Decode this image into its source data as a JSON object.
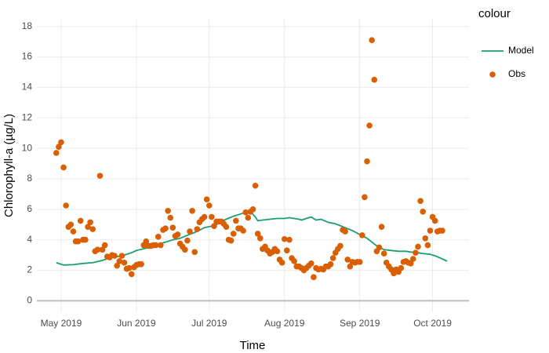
{
  "chart_data": {
    "type": "line",
    "xlabel": "Time",
    "ylabel": "Chlorophyll-a (µg/L)",
    "legend_title": "colour",
    "legend": "right",
    "grid": true,
    "reference_line": 0,
    "xlim": [
      111,
      289
    ],
    "ylim": [
      -0.75,
      18.5
    ],
    "xticks": [
      {
        "value": 121,
        "label": "May 2019"
      },
      {
        "value": 152,
        "label": "Jun 2019"
      },
      {
        "value": 182,
        "label": "Jul 2019"
      },
      {
        "value": 213,
        "label": "Aug 2019"
      },
      {
        "value": 244,
        "label": "Sep 2019"
      },
      {
        "value": 274,
        "label": "Oct 2019"
      }
    ],
    "yticks": [
      0,
      2,
      4,
      6,
      8,
      10,
      12,
      14,
      16,
      18
    ],
    "series": [
      {
        "name": "Model",
        "color": "#1b9e77",
        "style": "line",
        "x": [
          119,
          122,
          126,
          130,
          134,
          138,
          142,
          146,
          150,
          152,
          156,
          160,
          164,
          167,
          170,
          173,
          177,
          180,
          183,
          185,
          187,
          189,
          192,
          195,
          197,
          199,
          201,
          202,
          204,
          207,
          210,
          213,
          215,
          217,
          219,
          220,
          222,
          224,
          226,
          228,
          231,
          234,
          238,
          241,
          244,
          247,
          249,
          251,
          254,
          257,
          260,
          263,
          265,
          268,
          270,
          273,
          275,
          278,
          280
        ],
        "values": [
          2.5,
          2.35,
          2.37,
          2.45,
          2.5,
          2.65,
          2.85,
          2.95,
          3.15,
          3.3,
          3.45,
          3.65,
          3.85,
          4.0,
          4.1,
          4.3,
          4.55,
          4.8,
          4.9,
          5.0,
          5.2,
          5.35,
          5.55,
          5.7,
          5.8,
          5.85,
          5.5,
          5.25,
          5.3,
          5.35,
          5.4,
          5.4,
          5.45,
          5.4,
          5.35,
          5.3,
          5.4,
          5.5,
          5.3,
          5.35,
          5.15,
          5.05,
          4.8,
          4.6,
          4.35,
          4.1,
          3.85,
          3.6,
          3.35,
          3.3,
          3.25,
          3.25,
          3.2,
          3.15,
          3.1,
          3.05,
          2.95,
          2.75,
          2.6
        ]
      },
      {
        "name": "Obs",
        "color": "#d95f02",
        "style": "point",
        "x": [
          119,
          120,
          121,
          122,
          123,
          124,
          125,
          126,
          127,
          128,
          129,
          130,
          131,
          132,
          133,
          134,
          135,
          136,
          137,
          138,
          139,
          140,
          141,
          142,
          143,
          144,
          145,
          146,
          147,
          148,
          149,
          150,
          151,
          152,
          153,
          154,
          155,
          156,
          157,
          158,
          159,
          160,
          161,
          162,
          163,
          164,
          165,
          166,
          167,
          168,
          169,
          170,
          171,
          172,
          173,
          174,
          175,
          176,
          177,
          178,
          179,
          180,
          181,
          182,
          183,
          184,
          185,
          186,
          187,
          188,
          189,
          190,
          191,
          192,
          193,
          194,
          195,
          196,
          197,
          198,
          199,
          200,
          201,
          202,
          203,
          204,
          205,
          206,
          207,
          208,
          209,
          210,
          211,
          212,
          213,
          214,
          215,
          216,
          217,
          218,
          219,
          220,
          221,
          222,
          223,
          224,
          225,
          226,
          227,
          228,
          229,
          230,
          231,
          232,
          233,
          234,
          235,
          236,
          237,
          238,
          239,
          240,
          241,
          242,
          243,
          244,
          245,
          246,
          247,
          248,
          249,
          250,
          251,
          252,
          253,
          254,
          255,
          256,
          257,
          258,
          259,
          260,
          261,
          262,
          263,
          264,
          265,
          266,
          267,
          268,
          269,
          270,
          271,
          272,
          273,
          274,
          275,
          276,
          277,
          278
        ],
        "values": [
          9.7,
          10.1,
          10.4,
          8.75,
          6.25,
          4.85,
          5.0,
          4.55,
          3.9,
          3.9,
          5.25,
          4.0,
          4.0,
          4.85,
          5.15,
          4.7,
          3.25,
          3.35,
          8.2,
          3.35,
          3.65,
          2.9,
          2.85,
          3.0,
          2.95,
          2.3,
          2.6,
          2.95,
          2.5,
          2.1,
          2.15,
          1.75,
          2.2,
          2.35,
          2.4,
          2.4,
          3.65,
          3.9,
          3.6,
          3.6,
          3.65,
          3.65,
          4.2,
          3.65,
          4.65,
          4.75,
          5.9,
          5.45,
          4.8,
          4.25,
          4.35,
          3.75,
          3.55,
          3.35,
          3.95,
          4.55,
          5.9,
          3.2,
          4.7,
          5.15,
          5.35,
          5.5,
          6.65,
          6.25,
          5.5,
          4.9,
          5.2,
          5.2,
          5.2,
          5.05,
          4.85,
          4.0,
          3.95,
          4.4,
          5.25,
          4.75,
          4.75,
          4.6,
          5.8,
          5.45,
          5.85,
          6.0,
          7.55,
          4.4,
          4.1,
          3.4,
          3.55,
          3.3,
          3.1,
          3.2,
          3.4,
          3.25,
          2.7,
          2.5,
          4.05,
          3.3,
          4.0,
          2.8,
          2.6,
          2.25,
          2.25,
          2.15,
          2.0,
          2.15,
          2.3,
          2.45,
          1.55,
          2.15,
          2.05,
          2.1,
          2.05,
          2.25,
          2.25,
          2.4,
          2.8,
          3.15,
          3.4,
          3.6,
          4.65,
          4.55,
          2.7,
          2.25,
          2.55,
          2.5,
          2.55,
          2.55,
          4.3,
          6.8,
          9.15,
          11.5,
          17.1,
          14.5,
          3.25,
          3.5,
          4.85,
          3.1,
          2.5,
          2.25,
          2.05,
          1.8,
          2.05,
          1.9,
          2.15,
          2.55,
          2.6,
          2.5,
          2.45,
          2.75,
          3.15,
          3.55,
          6.55,
          5.85,
          4.1,
          3.65,
          4.6,
          5.5,
          5.25,
          4.55,
          4.6,
          4.6
        ]
      }
    ]
  }
}
